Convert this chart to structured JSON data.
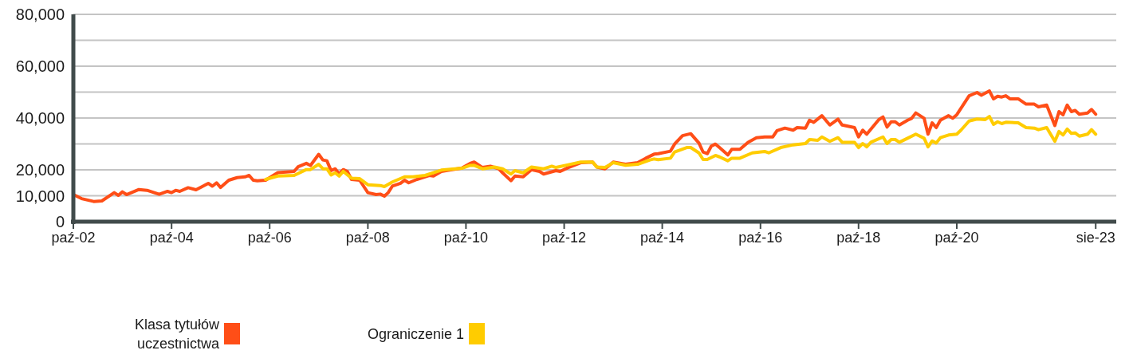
{
  "chart_data": {
    "type": "line",
    "xlim": [
      "2002-10",
      "2024-01"
    ],
    "ylim": [
      0,
      80000
    ],
    "xticks": [
      {
        "value": "2002-10",
        "label": "paź-02"
      },
      {
        "value": "2004-10",
        "label": "paź-04"
      },
      {
        "value": "2006-10",
        "label": "paź-06"
      },
      {
        "value": "2008-10",
        "label": "paź-08"
      },
      {
        "value": "2010-10",
        "label": "paź-10"
      },
      {
        "value": "2012-10",
        "label": "paź-12"
      },
      {
        "value": "2014-10",
        "label": "paź-14"
      },
      {
        "value": "2016-10",
        "label": "paź-16"
      },
      {
        "value": "2018-10",
        "label": "paź-18"
      },
      {
        "value": "2020-10",
        "label": "paź-20"
      },
      {
        "value": "2023-08",
        "label": "sie-23"
      }
    ],
    "yticks": [
      {
        "value": 0,
        "label": "0"
      },
      {
        "value": 10000,
        "label": "10,000"
      },
      {
        "value": 20000,
        "label": "20,000"
      },
      {
        "value": 30000,
        "label": null
      },
      {
        "value": 40000,
        "label": "40,000"
      },
      {
        "value": 50000,
        "label": null
      },
      {
        "value": 60000,
        "label": "60,000"
      },
      {
        "value": 70000,
        "label": null
      },
      {
        "value": 80000,
        "label": "80,000"
      }
    ],
    "grid": "y",
    "legend": "bottom",
    "marker": "none",
    "line_style": "solid",
    "series": [
      {
        "name": "Klasa tytułów uczestnictwa",
        "color": "#ff4e17",
        "x": [
          "2002-10",
          "2002-12",
          "2003-03",
          "2003-05",
          "2003-08",
          "2003-09",
          "2003-10",
          "2003-11",
          "2004-02",
          "2004-04",
          "2004-07",
          "2004-09",
          "2004-10",
          "2004-11",
          "2004-12",
          "2005-02",
          "2005-04",
          "2005-07",
          "2005-08",
          "2005-09",
          "2005-10",
          "2005-12",
          "2006-02",
          "2006-04",
          "2006-05",
          "2006-06",
          "2006-07",
          "2006-09",
          "2006-12",
          "2007-04",
          "2007-05",
          "2007-07",
          "2007-08",
          "2007-10",
          "2007-11",
          "2007-12",
          "2008-01",
          "2008-02",
          "2008-03",
          "2008-04",
          "2008-05",
          "2008-06",
          "2008-08",
          "2008-10",
          "2008-12",
          "2009-01",
          "2009-02",
          "2009-03",
          "2009-04",
          "2009-06",
          "2009-07",
          "2009-08",
          "2009-10",
          "2010-01",
          "2010-02",
          "2010-04",
          "2010-06",
          "2010-09",
          "2010-11",
          "2010-12",
          "2011-02",
          "2011-04",
          "2011-06",
          "2011-07",
          "2011-09",
          "2011-10",
          "2011-12",
          "2012-02",
          "2012-04",
          "2012-05",
          "2012-08",
          "2012-09",
          "2012-11",
          "2013-02",
          "2013-05",
          "2013-06",
          "2013-08",
          "2013-10",
          "2014-01",
          "2014-04",
          "2014-06",
          "2014-08",
          "2014-09",
          "2014-12",
          "2015-01",
          "2015-03",
          "2015-05",
          "2015-07",
          "2015-08",
          "2015-09",
          "2015-10",
          "2015-11",
          "2015-12",
          "2016-02",
          "2016-03",
          "2016-05",
          "2016-07",
          "2016-09",
          "2016-11",
          "2017-01",
          "2017-02",
          "2017-04",
          "2017-06",
          "2017-07",
          "2017-09",
          "2017-10",
          "2017-11",
          "2018-01",
          "2018-03",
          "2018-05",
          "2018-06",
          "2018-09",
          "2018-10",
          "2018-11",
          "2018-12",
          "2019-03",
          "2019-04",
          "2019-05",
          "2019-06",
          "2019-07",
          "2019-08",
          "2019-10",
          "2019-11",
          "2019-12",
          "2020-02",
          "2020-03",
          "2020-04",
          "2020-05",
          "2020-06",
          "2020-08",
          "2020-09",
          "2020-10",
          "2021-01",
          "2021-03",
          "2021-04",
          "2021-06",
          "2021-07",
          "2021-08",
          "2021-09",
          "2021-10",
          "2021-11",
          "2022-01",
          "2022-03",
          "2022-05",
          "2022-06",
          "2022-08",
          "2022-10",
          "2022-11",
          "2022-12",
          "2023-01",
          "2023-02",
          "2023-03",
          "2023-04",
          "2023-06",
          "2023-07",
          "2023-08"
        ],
        "values": [
          10450,
          8900,
          7800,
          8000,
          11200,
          10150,
          11500,
          10450,
          12400,
          12100,
          10550,
          11700,
          11200,
          12100,
          11700,
          13100,
          12300,
          14800,
          13700,
          15000,
          13200,
          16000,
          17000,
          17300,
          17850,
          16000,
          15800,
          16000,
          18900,
          19400,
          21200,
          22500,
          21700,
          26000,
          23800,
          23500,
          19700,
          20400,
          18400,
          20100,
          19400,
          16300,
          16000,
          11200,
          10450,
          10650,
          9850,
          11200,
          13700,
          14800,
          16000,
          15000,
          16300,
          17850,
          17600,
          19400,
          19900,
          20700,
          22500,
          23000,
          20900,
          21400,
          20400,
          18850,
          15800,
          17600,
          17300,
          20100,
          19400,
          18400,
          19700,
          19400,
          20900,
          22750,
          23000,
          21100,
          20400,
          23000,
          22150,
          22750,
          24500,
          26050,
          26250,
          27200,
          29950,
          33200,
          33950,
          30350,
          26850,
          26250,
          29150,
          29950,
          28600,
          25750,
          27900,
          27900,
          30650,
          32400,
          32700,
          32700,
          35100,
          36100,
          35300,
          36300,
          36100,
          39150,
          38350,
          40900,
          37300,
          39600,
          37300,
          36300,
          32700,
          35300,
          33750,
          39400,
          40400,
          36500,
          38550,
          38550,
          37300,
          39150,
          39900,
          41950,
          39900,
          33750,
          38150,
          36300,
          39150,
          40900,
          39900,
          41250,
          48600,
          49850,
          48800,
          50450,
          47400,
          48400,
          48100,
          48600,
          47400,
          47400,
          45350,
          45350,
          44300,
          45000,
          37100,
          42450,
          41250,
          45000,
          42450,
          42950,
          41450,
          41950,
          43300,
          41450
        ]
      },
      {
        "name": "Ograniczenie 1",
        "color": "#ffcc00",
        "x": [
          "2006-09",
          "2006-12",
          "2007-04",
          "2007-07",
          "2007-08",
          "2007-10",
          "2007-11",
          "2007-12",
          "2008-01",
          "2008-02",
          "2008-03",
          "2008-04",
          "2008-06",
          "2008-08",
          "2008-10",
          "2009-01",
          "2009-02",
          "2009-04",
          "2009-07",
          "2009-09",
          "2009-12",
          "2010-04",
          "2010-09",
          "2010-11",
          "2010-12",
          "2011-02",
          "2011-05",
          "2011-07",
          "2011-09",
          "2011-10",
          "2011-12",
          "2012-02",
          "2012-05",
          "2012-07",
          "2012-08",
          "2012-11",
          "2013-02",
          "2013-05",
          "2013-06",
          "2013-08",
          "2013-10",
          "2014-01",
          "2014-04",
          "2014-07",
          "2014-08",
          "2014-09",
          "2014-12",
          "2015-01",
          "2015-04",
          "2015-05",
          "2015-07",
          "2015-08",
          "2015-09",
          "2015-11",
          "2015-12",
          "2016-02",
          "2016-03",
          "2016-05",
          "2016-08",
          "2016-11",
          "2016-12",
          "2017-03",
          "2017-06",
          "2017-09",
          "2017-10",
          "2017-12",
          "2018-01",
          "2018-03",
          "2018-05",
          "2018-06",
          "2018-09",
          "2018-10",
          "2018-11",
          "2018-12",
          "2019-01",
          "2019-04",
          "2019-05",
          "2019-06",
          "2019-07",
          "2019-08",
          "2019-10",
          "2019-12",
          "2020-02",
          "2020-03",
          "2020-04",
          "2020-05",
          "2020-06",
          "2020-08",
          "2020-10",
          "2020-11",
          "2021-01",
          "2021-03",
          "2021-05",
          "2021-06",
          "2021-07",
          "2021-08",
          "2021-09",
          "2021-10",
          "2022-01",
          "2022-03",
          "2022-05",
          "2022-06",
          "2022-08",
          "2022-10",
          "2022-11",
          "2022-12",
          "2023-01",
          "2023-02",
          "2023-03",
          "2023-04",
          "2023-06",
          "2023-07",
          "2023-08"
        ],
        "values": [
          16300,
          17600,
          17850,
          20100,
          20100,
          22150,
          20400,
          20400,
          18050,
          18850,
          17600,
          19400,
          16800,
          16600,
          14250,
          13950,
          13550,
          15300,
          17300,
          17300,
          17850,
          19900,
          20600,
          21700,
          21750,
          20400,
          21100,
          20400,
          18400,
          19700,
          18850,
          21100,
          20400,
          21400,
          20900,
          21950,
          23000,
          23000,
          21100,
          20900,
          22750,
          21750,
          22150,
          23800,
          24200,
          23900,
          24500,
          26850,
          28600,
          28600,
          26550,
          24000,
          24000,
          25550,
          25000,
          23500,
          24500,
          24500,
          26550,
          27100,
          26550,
          28600,
          29650,
          30150,
          31700,
          31400,
          32700,
          31000,
          32400,
          30650,
          30650,
          28600,
          30150,
          28900,
          30650,
          32700,
          30150,
          31700,
          31700,
          30650,
          32200,
          33750,
          32200,
          28900,
          31150,
          30350,
          32400,
          33450,
          33750,
          35300,
          38850,
          39600,
          39400,
          40600,
          37550,
          38550,
          37850,
          38350,
          38150,
          36300,
          36100,
          35500,
          36300,
          31000,
          34800,
          33450,
          35700,
          34050,
          34250,
          33000,
          33750,
          35500,
          33750
        ]
      }
    ]
  }
}
